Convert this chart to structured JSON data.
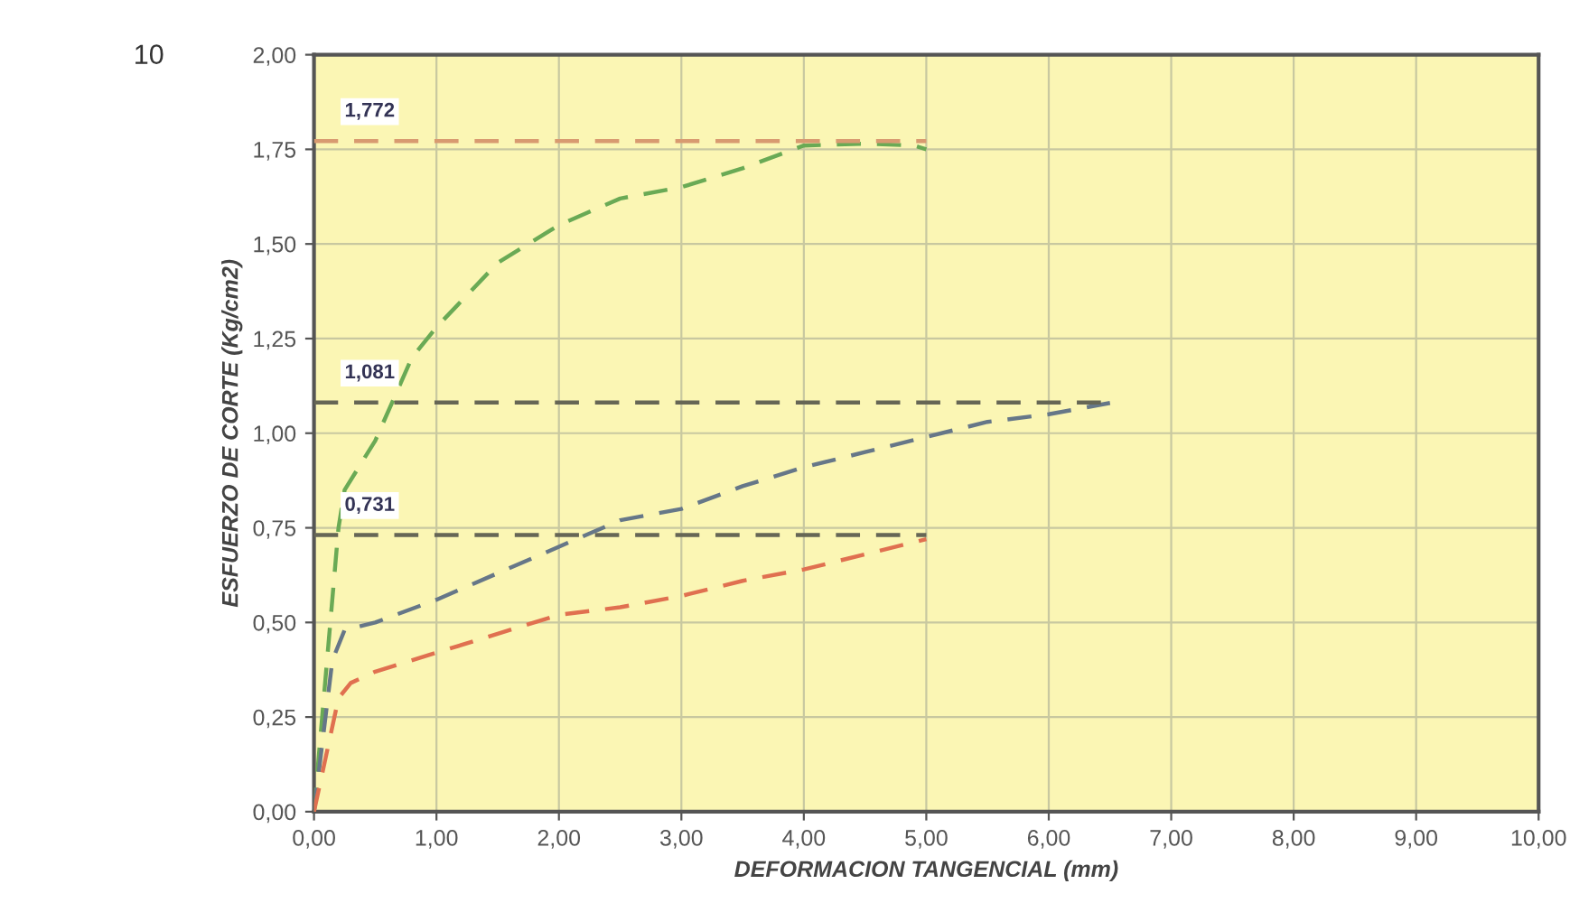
{
  "chart_data": {
    "type": "line",
    "xlabel": "DEFORMACION TANGENCIAL (mm)",
    "ylabel": "ESFUERZO DE CORTE (Kg/cm2)",
    "xlim": [
      0,
      10
    ],
    "ylim": [
      0,
      2
    ],
    "xticks": [
      {
        "value": 0,
        "label": "0,00"
      },
      {
        "value": 1,
        "label": "1,00"
      },
      {
        "value": 2,
        "label": "2,00"
      },
      {
        "value": 3,
        "label": "3,00"
      },
      {
        "value": 4,
        "label": "4,00"
      },
      {
        "value": 5,
        "label": "5,00"
      },
      {
        "value": 6,
        "label": "6,00"
      },
      {
        "value": 7,
        "label": "7,00"
      },
      {
        "value": 8,
        "label": "8,00"
      },
      {
        "value": 9,
        "label": "9,00"
      },
      {
        "value": 10,
        "label": "10,00"
      }
    ],
    "yticks": [
      {
        "value": 0,
        "label": "0,00"
      },
      {
        "value": 0.25,
        "label": "0,25"
      },
      {
        "value": 0.5,
        "label": "0,50"
      },
      {
        "value": 0.75,
        "label": "0,75"
      },
      {
        "value": 1.0,
        "label": "1,00"
      },
      {
        "value": 1.25,
        "label": "1,25"
      },
      {
        "value": 1.5,
        "label": "1,50"
      },
      {
        "value": 1.75,
        "label": "1,75"
      },
      {
        "value": 2.0,
        "label": "2,00"
      }
    ],
    "grid": true,
    "legend": false,
    "series": [
      {
        "color": "#6aaa55",
        "line_style": "dashed",
        "x": [
          0,
          0.2,
          0.25,
          0.5,
          0.8,
          1.0,
          1.5,
          2.0,
          2.5,
          3.0,
          3.5,
          4.0,
          4.5,
          4.9,
          5.0
        ],
        "values": [
          0,
          0.75,
          0.85,
          0.98,
          1.2,
          1.28,
          1.45,
          1.55,
          1.62,
          1.65,
          1.7,
          1.76,
          1.765,
          1.76,
          1.75
        ]
      },
      {
        "color": "#667788",
        "line_style": "dashed",
        "x": [
          0,
          0.15,
          0.25,
          0.5,
          1.0,
          1.5,
          2.0,
          2.5,
          3.0,
          3.5,
          4.0,
          4.5,
          5.0,
          5.5,
          6.0,
          6.5
        ],
        "values": [
          0,
          0.4,
          0.48,
          0.5,
          0.56,
          0.63,
          0.7,
          0.77,
          0.8,
          0.86,
          0.91,
          0.95,
          0.99,
          1.03,
          1.05,
          1.08
        ]
      },
      {
        "color": "#e07050",
        "line_style": "dashed",
        "x": [
          0,
          0.2,
          0.3,
          0.5,
          1.0,
          1.5,
          2.0,
          2.5,
          3.0,
          3.5,
          4.0,
          4.5,
          5.0
        ],
        "values": [
          0,
          0.3,
          0.34,
          0.37,
          0.42,
          0.47,
          0.52,
          0.54,
          0.57,
          0.61,
          0.64,
          0.68,
          0.72
        ]
      },
      {
        "color": "#d89a70",
        "line_style": "dashed",
        "x": [
          0,
          5.0
        ],
        "values": [
          1.772,
          1.772
        ]
      },
      {
        "color": "#666655",
        "line_style": "dashed",
        "x": [
          0,
          6.5
        ],
        "values": [
          1.081,
          1.081
        ]
      },
      {
        "color": "#666655",
        "line_style": "dashed",
        "x": [
          0,
          5.0
        ],
        "values": [
          0.731,
          0.731
        ]
      }
    ],
    "annotations": [
      "10",
      {
        "text": "1,772",
        "y": 1.772
      },
      {
        "text": "1,081",
        "y": 1.081
      },
      {
        "text": "0,731",
        "y": 0.731
      }
    ]
  }
}
